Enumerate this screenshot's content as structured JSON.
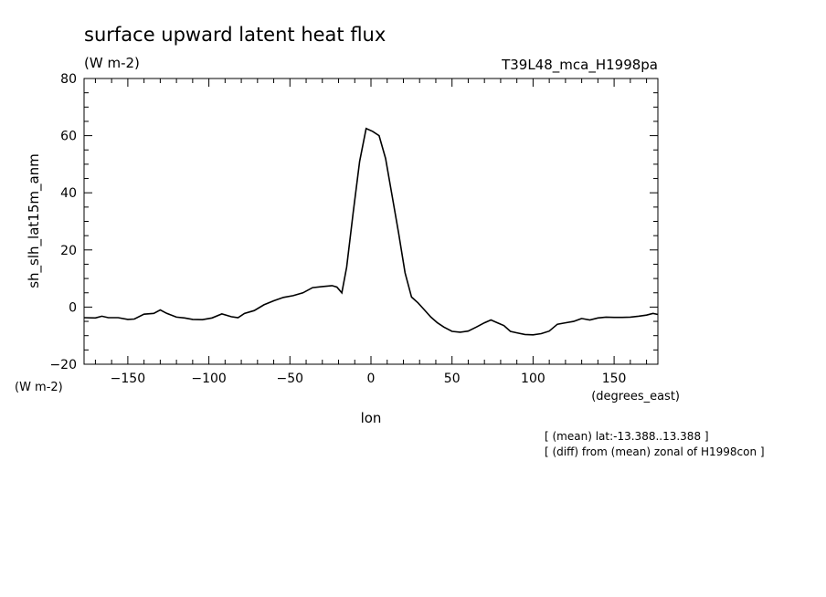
{
  "header": {
    "title": "surface upward latent heat flux",
    "units": "(W m-2)",
    "experiment": "T39L48_mca_H1998pa"
  },
  "notes": [
    "[ (mean) lat:-13.388..13.388 ]",
    "[ (diff) from (mean) zonal of H1998con ]"
  ],
  "chart_data": {
    "type": "line",
    "title": "surface upward latent heat flux",
    "xlabel": "lon",
    "xunits": "(degrees_east)",
    "ylabel": "sh_slh_lat15m_anm",
    "yunits": "(W m-2)",
    "xlim": [
      -177,
      177
    ],
    "ylim": [
      -20,
      80
    ],
    "xticks": [
      -150,
      -100,
      -50,
      0,
      50,
      100,
      150
    ],
    "yticks": [
      -20,
      0,
      20,
      40,
      60,
      80
    ],
    "grid": false,
    "series": [
      {
        "x": [
          -177,
          -170,
          -166,
          -162,
          -156,
          -150,
          -146,
          -140,
          -134,
          -130,
          -126,
          -120,
          -115,
          -110,
          -104,
          -98,
          -92,
          -86,
          -82,
          -78,
          -72,
          -66,
          -60,
          -54,
          -48,
          -42,
          -36,
          -30,
          -24,
          -21,
          -18,
          -15,
          -11,
          -7,
          -3,
          1,
          5,
          9,
          13,
          17,
          21,
          25,
          29,
          33,
          37,
          41,
          45,
          50,
          55,
          60,
          65,
          70,
          74,
          78,
          82,
          86,
          90,
          95,
          100,
          105,
          110,
          115,
          120,
          125,
          130,
          135,
          140,
          145,
          150,
          155,
          160,
          165,
          170,
          174,
          177
        ],
        "y": [
          -3.7,
          -3.8,
          -3.2,
          -3.7,
          -3.7,
          -4.3,
          -4.2,
          -2.5,
          -2.2,
          -1.0,
          -2.2,
          -3.5,
          -3.8,
          -4.3,
          -4.4,
          -3.8,
          -2.4,
          -3.4,
          -3.7,
          -2.2,
          -1.2,
          0.8,
          2.2,
          3.4,
          4.0,
          5.0,
          6.8,
          7.2,
          7.5,
          7.0,
          5.0,
          14.0,
          33.0,
          51.0,
          62.5,
          61.5,
          60.0,
          52.0,
          39.0,
          26.0,
          12.0,
          3.5,
          1.5,
          -1.0,
          -3.5,
          -5.5,
          -7.0,
          -8.5,
          -8.8,
          -8.4,
          -7.0,
          -5.5,
          -4.5,
          -5.5,
          -6.5,
          -8.5,
          -9.0,
          -9.6,
          -9.7,
          -9.3,
          -8.4,
          -6.0,
          -5.5,
          -5.0,
          -4.0,
          -4.5,
          -3.8,
          -3.5,
          -3.6,
          -3.6,
          -3.5,
          -3.2,
          -2.8,
          -2.2,
          -2.6
        ]
      }
    ]
  }
}
